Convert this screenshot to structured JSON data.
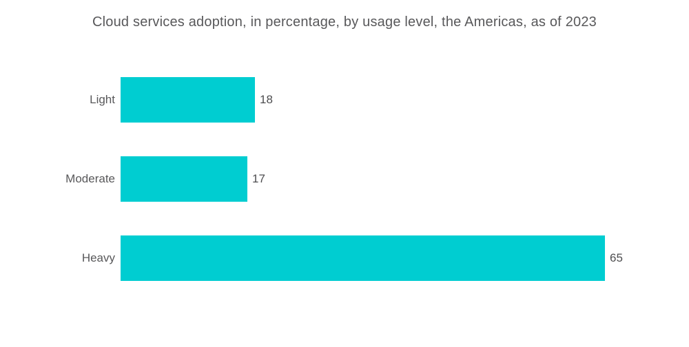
{
  "colors": {
    "bar": "#00cdd1",
    "title_text": "#58585a",
    "label_text": "#58585a",
    "value_text": "#4d4d4f",
    "background": "#ffffff"
  },
  "chart_data": {
    "type": "bar",
    "orientation": "horizontal",
    "title": "Cloud services adoption, in percentage, by usage level, the Americas, as of 2023",
    "categories": [
      "Light",
      "Moderate",
      "Heavy"
    ],
    "values": [
      18,
      17,
      65
    ],
    "value_suffix": "",
    "xlabel": "",
    "ylabel": "",
    "xlim": [
      0,
      65
    ],
    "grid": false,
    "legend": false,
    "value_labels_shown": true
  }
}
